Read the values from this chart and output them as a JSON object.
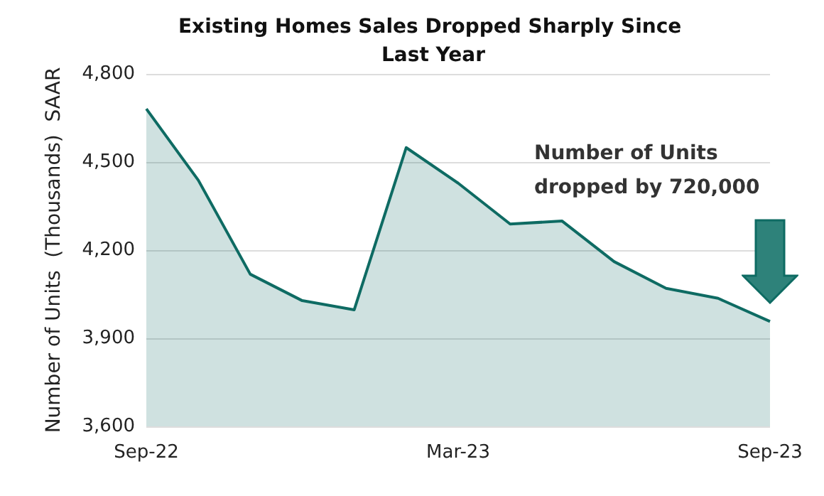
{
  "chart_data": {
    "type": "area",
    "title": "Existing Homes Sales Dropped Sharply Since Last Year",
    "ylabel": "Number of Units  (Thousands)  SAAR",
    "categories": [
      "Sep-22",
      null,
      null,
      null,
      null,
      null,
      "Mar-23",
      null,
      null,
      null,
      null,
      null,
      "Sep-23"
    ],
    "series": [
      {
        "color": "#0e6b63",
        "values": [
          4681,
          4438,
          4118,
          4028,
          3997,
          4549,
          4428,
          4289,
          4299,
          4161,
          4070,
          4036,
          3957
        ]
      }
    ],
    "ylim": [
      3600,
      4800
    ],
    "yticks": [
      {
        "value": 3600,
        "label": "3,600"
      },
      {
        "value": 3900,
        "label": "3,900"
      },
      {
        "value": 4200,
        "label": "4,200"
      },
      {
        "value": 4500,
        "label": "4,500"
      },
      {
        "value": 4800,
        "label": "4,800"
      }
    ],
    "grid": "y",
    "marker": "none",
    "line_style": "solid",
    "annotations": [
      "Number of Units dropped by 720,000"
    ]
  }
}
